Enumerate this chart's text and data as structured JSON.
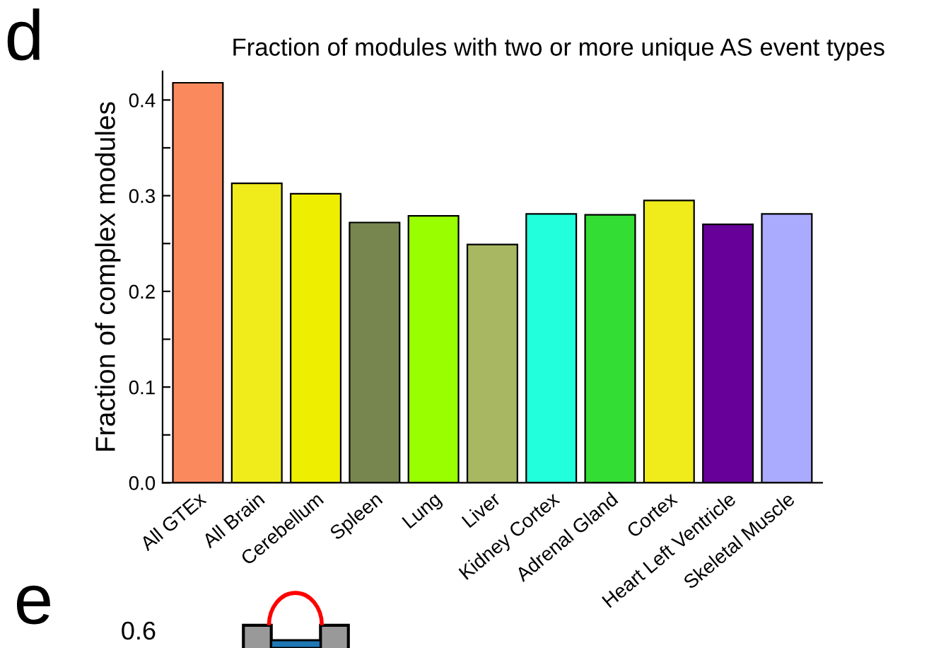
{
  "chart_data": {
    "type": "bar",
    "title": "Fraction of modules with two or more unique AS event types",
    "ylabel": "Fraction of complex modules",
    "categories": [
      "All GTEx",
      "All Brain",
      "Cerebellum",
      "Spleen",
      "Lung",
      "Liver",
      "Kidney Cortex",
      "Adrenal Gland",
      "Cortex",
      "Heart Left Ventricle",
      "Skeletal Muscle"
    ],
    "values": [
      0.418,
      0.313,
      0.302,
      0.272,
      0.279,
      0.249,
      0.281,
      0.28,
      0.295,
      0.27,
      0.281
    ],
    "colors": [
      "#fa8a5e",
      "#f0ec1c",
      "#eeee00",
      "#77864f",
      "#99ff00",
      "#a8b862",
      "#22ffdd",
      "#33dd33",
      "#f0ec1c",
      "#660099",
      "#aaaaff"
    ],
    "ylim": [
      0,
      0.43
    ],
    "yticks": [
      {
        "value": 0.0,
        "label": "0.0"
      },
      {
        "value": 0.05,
        "label": null
      },
      {
        "value": 0.1,
        "label": "0.1"
      },
      {
        "value": 0.15,
        "label": null
      },
      {
        "value": 0.2,
        "label": "0.2"
      },
      {
        "value": 0.25,
        "label": null
      },
      {
        "value": 0.3,
        "label": "0.3"
      },
      {
        "value": 0.35,
        "label": null
      },
      {
        "value": 0.4,
        "label": "0.4"
      }
    ],
    "grid": false,
    "legend": false,
    "annotations": [
      "d",
      "e",
      "0.6"
    ]
  }
}
